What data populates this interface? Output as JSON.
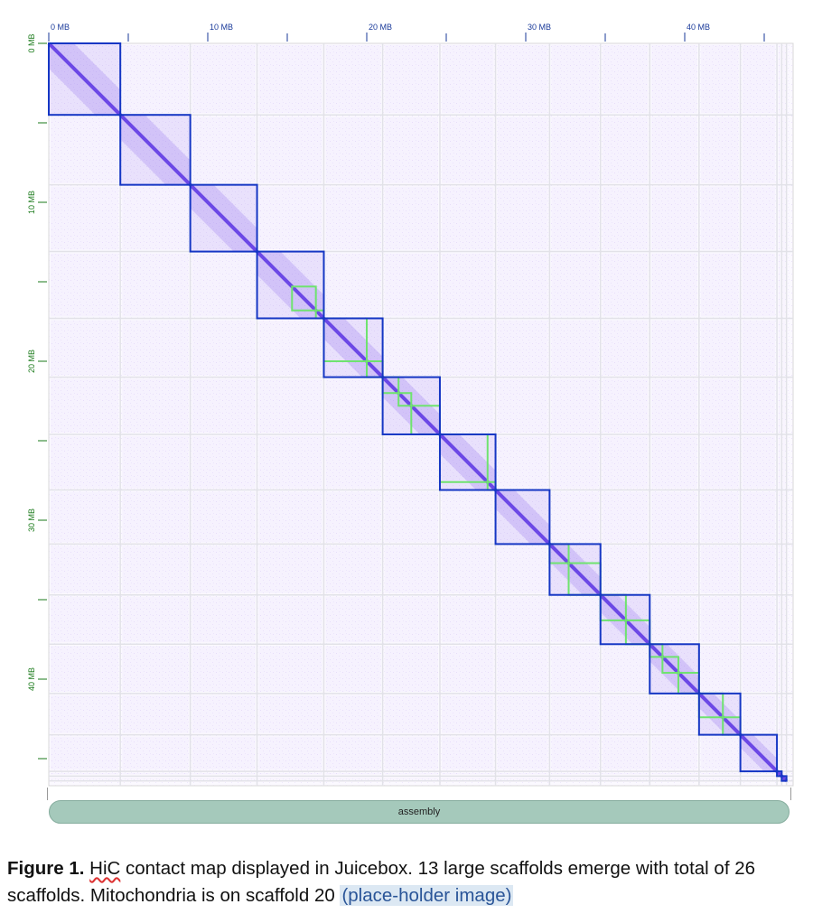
{
  "chart_data": {
    "type": "heatmap",
    "x_ticks": [
      "0 MB",
      "10 MB",
      "20 MB",
      "30 MB",
      "40 MB"
    ],
    "y_ticks": [
      "0 MB",
      "10 MB",
      "20 MB",
      "30 MB",
      "40 MB"
    ],
    "axis_range_mb": [
      0,
      46
    ],
    "track_label": "assembly",
    "colors": {
      "contact": "#6a3ce8",
      "scaffold_box": "#1536c4",
      "contig_box": "#6fe36f",
      "tick_top": "#1a3a9a",
      "tick_left": "#1a7a1a"
    },
    "scaffolds_mb": [
      [
        0,
        4.5
      ],
      [
        4.5,
        8.9
      ],
      [
        8.9,
        13.1
      ],
      [
        13.1,
        17.3
      ],
      [
        17.3,
        21.0
      ],
      [
        21.0,
        24.6
      ],
      [
        24.6,
        28.1
      ],
      [
        28.1,
        31.5
      ],
      [
        31.5,
        34.7
      ],
      [
        34.7,
        37.8
      ],
      [
        37.8,
        40.9
      ],
      [
        40.9,
        43.5
      ],
      [
        43.5,
        45.8
      ],
      [
        45.8,
        46.1
      ],
      [
        46.1,
        46.4
      ]
    ],
    "contigs_mb": [
      [
        15.3,
        16.8
      ],
      [
        16.8,
        17.3
      ],
      [
        17.3,
        20.0
      ],
      [
        20.0,
        21.0
      ],
      [
        21.0,
        22.0
      ],
      [
        22.0,
        22.8
      ],
      [
        22.8,
        24.6
      ],
      [
        24.6,
        27.6
      ],
      [
        27.6,
        28.1
      ],
      [
        31.5,
        32.7
      ],
      [
        32.7,
        34.7
      ],
      [
        34.7,
        36.3
      ],
      [
        36.3,
        37.8
      ],
      [
        37.8,
        38.6
      ],
      [
        38.6,
        39.6
      ],
      [
        39.6,
        40.9
      ],
      [
        40.9,
        42.4
      ],
      [
        42.4,
        43.5
      ]
    ]
  },
  "caption": {
    "label": "Figure 1.",
    "hic": "HiC",
    "text": " contact map displayed in Juicebox. 13 large scaffolds emerge with total of 26 scaffolds. Mitochondria is on scaffold 20 ",
    "placeholder": "(place-holder image)"
  }
}
